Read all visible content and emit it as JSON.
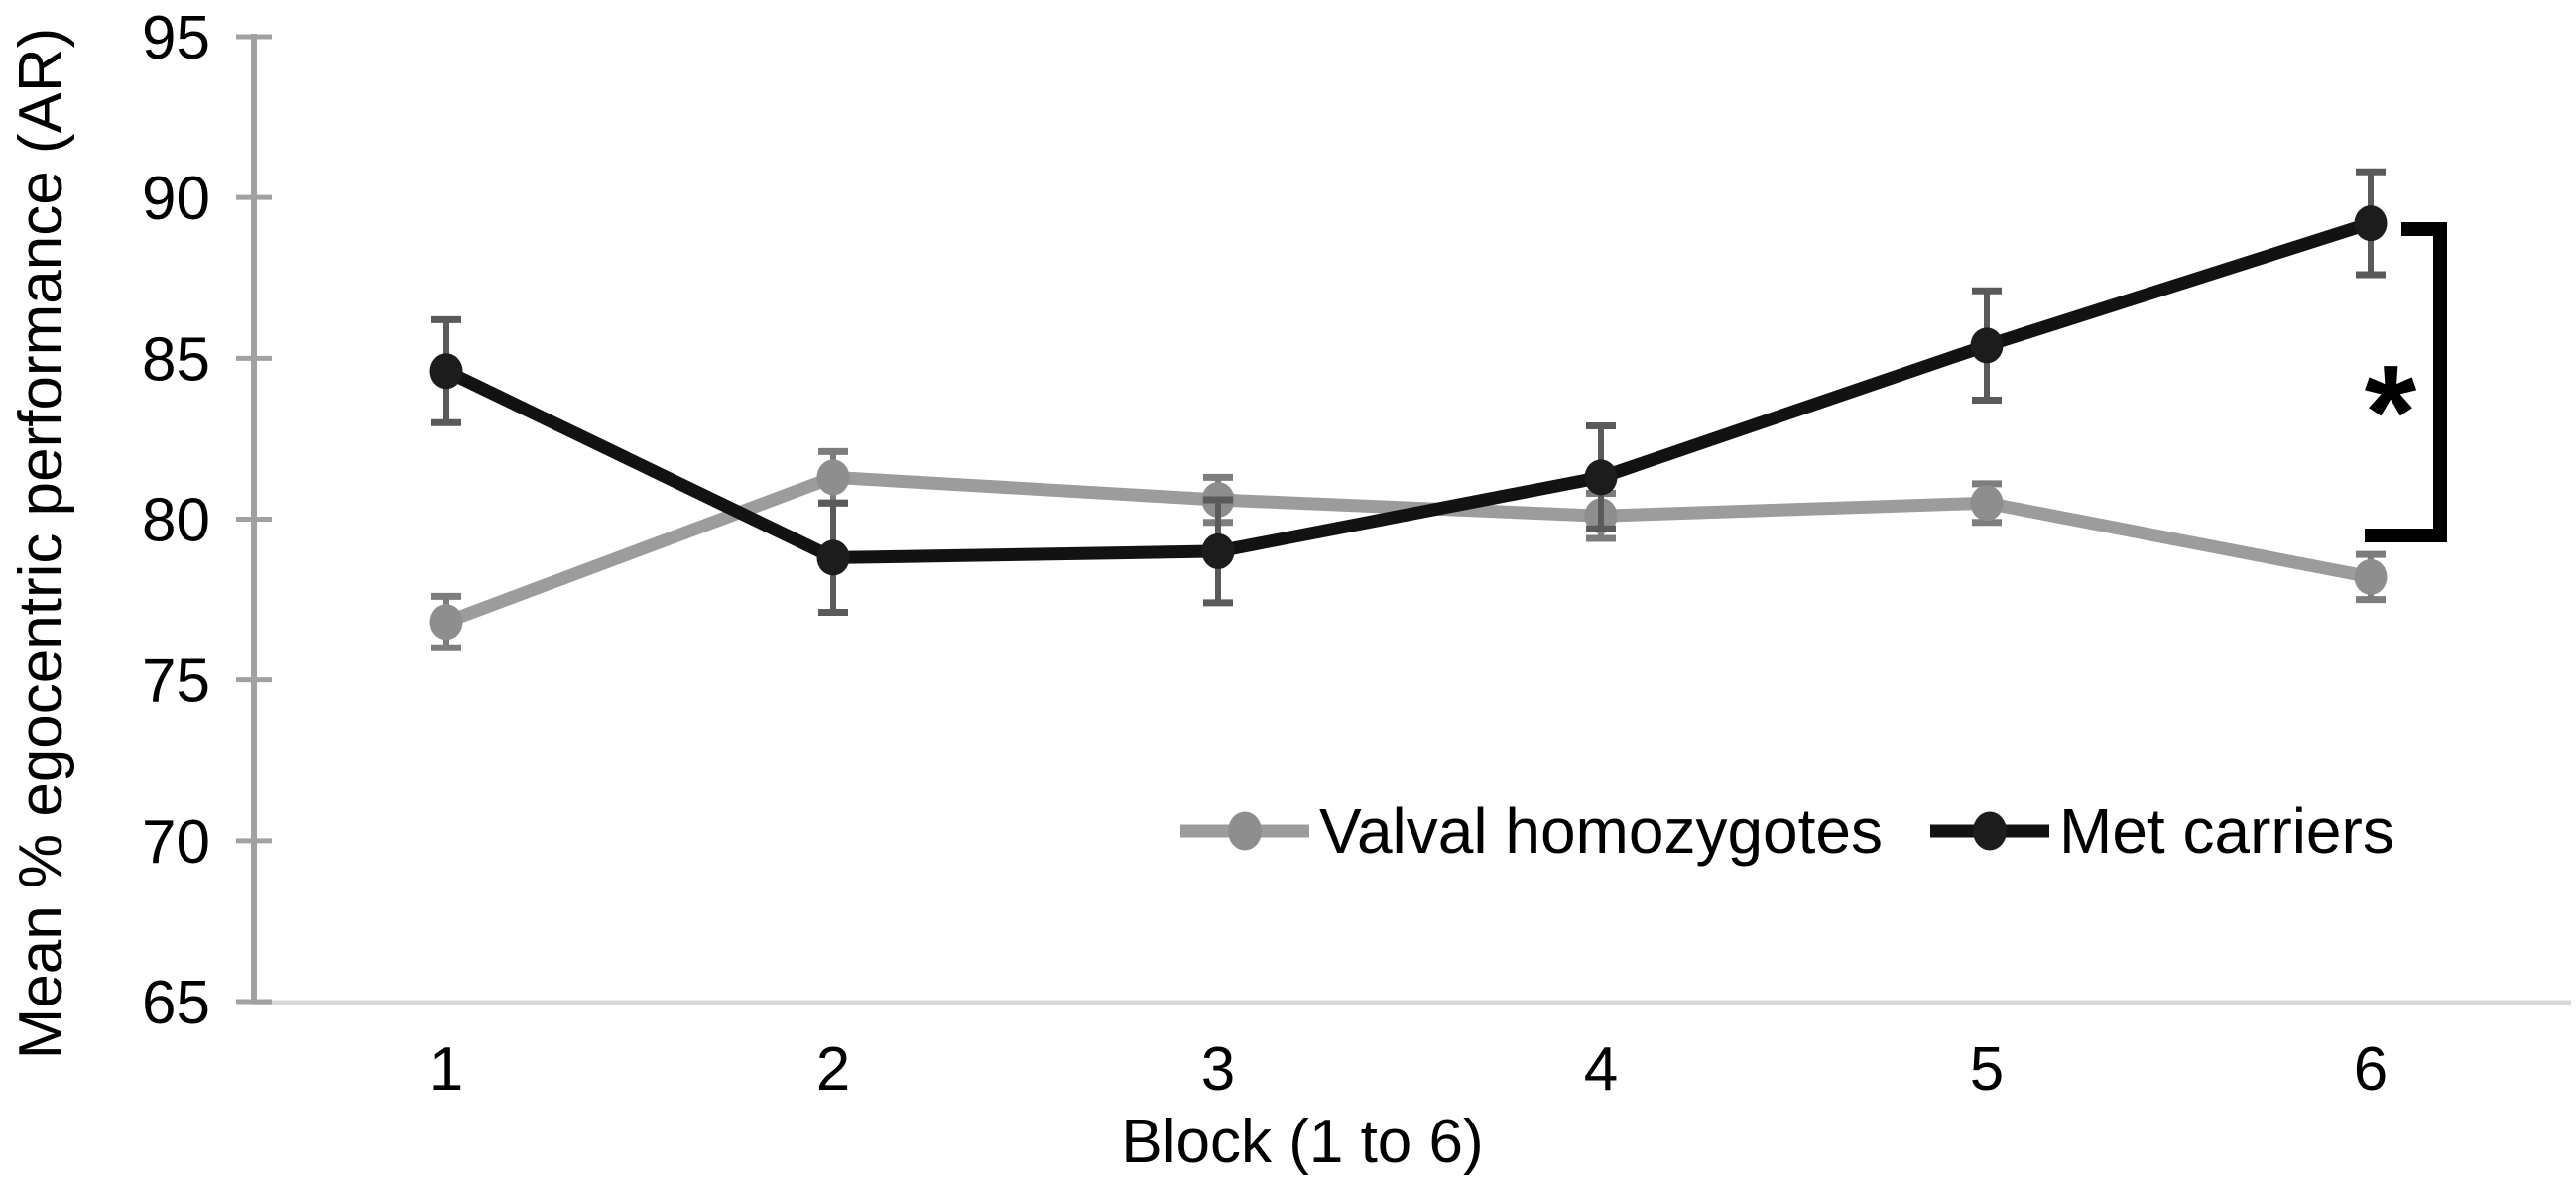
{
  "chart_data": {
    "type": "line",
    "title": "",
    "xlabel": "Block (1 to 6)",
    "ylabel": "Mean % egocentric performance (AR)",
    "x": [
      1,
      2,
      3,
      4,
      5,
      6
    ],
    "x_tick_labels": [
      "1",
      "2",
      "3",
      "4",
      "5",
      "6"
    ],
    "ylim": [
      65,
      95
    ],
    "yticks": [
      65,
      70,
      75,
      80,
      85,
      90,
      95
    ],
    "grid": false,
    "legend_position": "inside-bottom-center",
    "background_color": "#ffffff",
    "y_axis_color": "#a1a1a1",
    "x_axis_color": "#d9d9d9",
    "series": [
      {
        "name": "Valval homozygotes",
        "line_color": "#9c9c9c",
        "marker_color": "#8e8e8e",
        "error_color": "#7d7d7d",
        "marker": "circle",
        "values": [
          76.8,
          81.3,
          80.6,
          80.1,
          80.5,
          78.2
        ],
        "error": [
          0.8,
          0.8,
          0.7,
          0.7,
          0.6,
          0.7
        ]
      },
      {
        "name": "Met carriers",
        "line_color": "#121212",
        "marker_color": "#1c1c1c",
        "error_color": "#5a5a5a",
        "marker": "circle",
        "values": [
          84.6,
          78.8,
          79.0,
          81.3,
          85.4,
          89.2
        ],
        "error": [
          1.6,
          1.7,
          1.6,
          1.6,
          1.7,
          1.6
        ]
      }
    ],
    "annotation": {
      "symbol": "*",
      "meaning": "significant difference bracket",
      "at_block": 6,
      "bracket_color": "#000000"
    }
  }
}
